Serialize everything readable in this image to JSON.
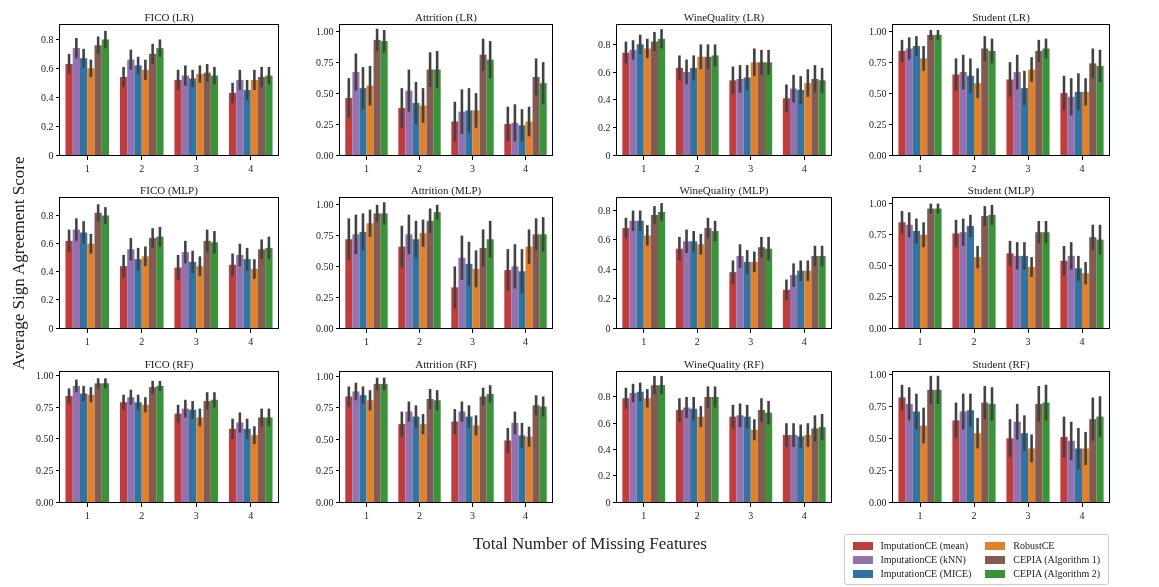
{
  "chart_data": [
    {
      "type": "bar",
      "title": "FICO (LR)",
      "categories": [
        "1",
        "2",
        "3",
        "4"
      ],
      "ylim": [
        0,
        0.9
      ],
      "yticks": [
        0,
        0.2,
        0.4,
        0.6,
        0.8
      ],
      "grid": false,
      "series": [
        {
          "color": "#c03d3e",
          "values": [
            0.63,
            0.54,
            0.52,
            0.43
          ],
          "errors": [
            0.07,
            0.07,
            0.07,
            0.07
          ]
        },
        {
          "color": "#9372b2",
          "values": [
            0.74,
            0.66,
            0.55,
            0.52
          ],
          "errors": [
            0.07,
            0.07,
            0.07,
            0.07
          ]
        },
        {
          "color": "#3274a1",
          "values": [
            0.67,
            0.62,
            0.53,
            0.45
          ],
          "errors": [
            0.065,
            0.06,
            0.06,
            0.07
          ]
        },
        {
          "color": "#e1812c",
          "values": [
            0.6,
            0.59,
            0.56,
            0.52
          ],
          "errors": [
            0.06,
            0.07,
            0.06,
            0.07
          ]
        },
        {
          "color": "#845b53",
          "values": [
            0.76,
            0.7,
            0.57,
            0.54
          ],
          "errors": [
            0.06,
            0.07,
            0.06,
            0.07
          ]
        },
        {
          "color": "#3a923a",
          "values": [
            0.8,
            0.74,
            0.55,
            0.55
          ],
          "errors": [
            0.06,
            0.06,
            0.06,
            0.06
          ]
        }
      ]
    },
    {
      "type": "bar",
      "title": "Attrition (LR)",
      "categories": [
        "1",
        "2",
        "3",
        "4"
      ],
      "ylim": [
        0,
        1.05
      ],
      "yticks": [
        {
          "value": 0,
          "label": "0.00"
        },
        0.25,
        {
          "value": 0.5,
          "label": "0.50"
        },
        0.75,
        {
          "value": 1,
          "label": "1.00"
        }
      ],
      "grid": false,
      "series": [
        {
          "color": "#c03d3e",
          "values": [
            0.46,
            0.38,
            0.27,
            0.25
          ],
          "errors": [
            0.16,
            0.16,
            0.16,
            0.14
          ]
        },
        {
          "color": "#9372b2",
          "values": [
            0.67,
            0.52,
            0.35,
            0.26
          ],
          "errors": [
            0.15,
            0.17,
            0.18,
            0.15
          ]
        },
        {
          "color": "#3274a1",
          "values": [
            0.54,
            0.42,
            0.36,
            0.24
          ],
          "errors": [
            0.17,
            0.17,
            0.18,
            0.13
          ]
        },
        {
          "color": "#e1812c",
          "values": [
            0.56,
            0.4,
            0.36,
            0.27
          ],
          "errors": [
            0.16,
            0.14,
            0.14,
            0.12
          ]
        },
        {
          "color": "#845b53",
          "values": [
            0.93,
            0.69,
            0.81,
            0.63
          ],
          "errors": [
            0.09,
            0.14,
            0.13,
            0.15
          ]
        },
        {
          "color": "#3a923a",
          "values": [
            0.92,
            0.69,
            0.77,
            0.58
          ],
          "errors": [
            0.09,
            0.15,
            0.15,
            0.17
          ]
        }
      ]
    },
    {
      "type": "bar",
      "title": "WineQuality (LR)",
      "categories": [
        "1",
        "2",
        "3",
        "4"
      ],
      "ylim": [
        0,
        0.94
      ],
      "yticks": [
        0,
        0.2,
        0.4,
        0.6,
        0.8
      ],
      "grid": false,
      "series": [
        {
          "color": "#c03d3e",
          "values": [
            0.74,
            0.63,
            0.54,
            0.41
          ],
          "errors": [
            0.08,
            0.09,
            0.1,
            0.1
          ]
        },
        {
          "color": "#9372b2",
          "values": [
            0.76,
            0.6,
            0.55,
            0.48
          ],
          "errors": [
            0.07,
            0.09,
            0.1,
            0.1
          ]
        },
        {
          "color": "#3274a1",
          "values": [
            0.8,
            0.63,
            0.56,
            0.47
          ],
          "errors": [
            0.07,
            0.09,
            0.09,
            0.1
          ]
        },
        {
          "color": "#e1812c",
          "values": [
            0.77,
            0.71,
            0.67,
            0.52
          ],
          "errors": [
            0.07,
            0.09,
            0.1,
            0.1
          ]
        },
        {
          "color": "#845b53",
          "values": [
            0.82,
            0.71,
            0.67,
            0.55
          ],
          "errors": [
            0.07,
            0.09,
            0.09,
            0.1
          ]
        },
        {
          "color": "#3a923a",
          "values": [
            0.84,
            0.72,
            0.67,
            0.54
          ],
          "errors": [
            0.07,
            0.08,
            0.09,
            0.09
          ]
        }
      ]
    },
    {
      "type": "bar",
      "title": "Student (LR)",
      "categories": [
        "1",
        "2",
        "3",
        "4"
      ],
      "ylim": [
        0,
        1.05
      ],
      "yticks": [
        {
          "value": 0,
          "label": "0.00"
        },
        0.25,
        {
          "value": 0.5,
          "label": "0.50"
        },
        0.75,
        {
          "value": 1,
          "label": "1.00"
        }
      ],
      "grid": false,
      "series": [
        {
          "color": "#c03d3e",
          "values": [
            0.84,
            0.65,
            0.61,
            0.5
          ],
          "errors": [
            0.09,
            0.13,
            0.14,
            0.14
          ]
        },
        {
          "color": "#9372b2",
          "values": [
            0.86,
            0.67,
            0.67,
            0.47
          ],
          "errors": [
            0.09,
            0.14,
            0.14,
            0.15
          ]
        },
        {
          "color": "#3274a1",
          "values": [
            0.88,
            0.64,
            0.54,
            0.51
          ],
          "errors": [
            0.08,
            0.14,
            0.14,
            0.15
          ]
        },
        {
          "color": "#e1812c",
          "values": [
            0.78,
            0.58,
            0.69,
            0.51
          ],
          "errors": [
            0.1,
            0.12,
            0.1,
            0.11
          ]
        },
        {
          "color": "#845b53",
          "values": [
            0.97,
            0.86,
            0.84,
            0.74
          ],
          "errors": [
            0.04,
            0.1,
            0.09,
            0.12
          ]
        },
        {
          "color": "#3a923a",
          "values": [
            0.97,
            0.84,
            0.86,
            0.72
          ],
          "errors": [
            0.04,
            0.1,
            0.08,
            0.13
          ]
        }
      ]
    },
    {
      "type": "bar",
      "title": "FICO (MLP)",
      "ylabel": "Average Sign Agreement Score",
      "categories": [
        "1",
        "2",
        "3",
        "4"
      ],
      "ylim": [
        0,
        0.925
      ],
      "yticks": [
        0,
        0.2,
        0.4,
        0.6,
        0.8
      ],
      "grid": false,
      "series": [
        {
          "color": "#c03d3e",
          "values": [
            0.62,
            0.44,
            0.43,
            0.45
          ],
          "errors": [
            0.08,
            0.08,
            0.09,
            0.08
          ]
        },
        {
          "color": "#9372b2",
          "values": [
            0.7,
            0.56,
            0.54,
            0.52
          ],
          "errors": [
            0.08,
            0.08,
            0.08,
            0.08
          ]
        },
        {
          "color": "#3274a1",
          "values": [
            0.68,
            0.49,
            0.47,
            0.49
          ],
          "errors": [
            0.08,
            0.08,
            0.08,
            0.08
          ]
        },
        {
          "color": "#e1812c",
          "values": [
            0.6,
            0.51,
            0.44,
            0.42
          ],
          "errors": [
            0.07,
            0.07,
            0.07,
            0.07
          ]
        },
        {
          "color": "#845b53",
          "values": [
            0.82,
            0.64,
            0.62,
            0.56
          ],
          "errors": [
            0.06,
            0.07,
            0.08,
            0.07
          ]
        },
        {
          "color": "#3a923a",
          "values": [
            0.8,
            0.65,
            0.61,
            0.57
          ],
          "errors": [
            0.06,
            0.07,
            0.08,
            0.08
          ]
        }
      ]
    },
    {
      "type": "bar",
      "title": "Attrition (MLP)",
      "categories": [
        "1",
        "2",
        "3",
        "4"
      ],
      "ylim": [
        0,
        1.055
      ],
      "yticks": [
        {
          "value": 0,
          "label": "0.00"
        },
        0.25,
        {
          "value": 0.5,
          "label": "0.50"
        },
        0.75,
        {
          "value": 1,
          "label": "1.00"
        }
      ],
      "grid": false,
      "series": [
        {
          "color": "#c03d3e",
          "values": [
            0.72,
            0.66,
            0.33,
            0.47
          ],
          "errors": [
            0.17,
            0.17,
            0.17,
            0.17
          ]
        },
        {
          "color": "#9372b2",
          "values": [
            0.76,
            0.76,
            0.57,
            0.5
          ],
          "errors": [
            0.16,
            0.16,
            0.18,
            0.18
          ]
        },
        {
          "color": "#3274a1",
          "values": [
            0.78,
            0.72,
            0.52,
            0.46
          ],
          "errors": [
            0.15,
            0.15,
            0.18,
            0.18
          ]
        },
        {
          "color": "#e1812c",
          "values": [
            0.85,
            0.77,
            0.48,
            0.66
          ],
          "errors": [
            0.11,
            0.11,
            0.15,
            0.14
          ]
        },
        {
          "color": "#845b53",
          "values": [
            0.93,
            0.87,
            0.65,
            0.76
          ],
          "errors": [
            0.07,
            0.1,
            0.15,
            0.13
          ]
        },
        {
          "color": "#3a923a",
          "values": [
            0.93,
            0.94,
            0.72,
            0.76
          ],
          "errors": [
            0.09,
            0.06,
            0.15,
            0.14
          ]
        }
      ]
    },
    {
      "type": "bar",
      "title": "WineQuality (MLP)",
      "categories": [
        "1",
        "2",
        "3",
        "4"
      ],
      "ylim": [
        0,
        0.885
      ],
      "yticks": [
        0,
        0.2,
        0.4,
        0.6,
        0.8
      ],
      "grid": false,
      "series": [
        {
          "color": "#c03d3e",
          "values": [
            0.68,
            0.54,
            0.38,
            0.26
          ],
          "errors": [
            0.07,
            0.08,
            0.08,
            0.07
          ]
        },
        {
          "color": "#9372b2",
          "values": [
            0.73,
            0.59,
            0.49,
            0.36
          ],
          "errors": [
            0.07,
            0.08,
            0.08,
            0.08
          ]
        },
        {
          "color": "#3274a1",
          "values": [
            0.73,
            0.59,
            0.45,
            0.39
          ],
          "errors": [
            0.07,
            0.07,
            0.08,
            0.07
          ]
        },
        {
          "color": "#e1812c",
          "values": [
            0.63,
            0.57,
            0.45,
            0.39
          ],
          "errors": [
            0.07,
            0.07,
            0.07,
            0.07
          ]
        },
        {
          "color": "#845b53",
          "values": [
            0.77,
            0.68,
            0.55,
            0.49
          ],
          "errors": [
            0.06,
            0.07,
            0.07,
            0.07
          ]
        },
        {
          "color": "#3a923a",
          "values": [
            0.79,
            0.66,
            0.54,
            0.49
          ],
          "errors": [
            0.06,
            0.07,
            0.08,
            0.07
          ]
        }
      ]
    },
    {
      "type": "bar",
      "title": "Student (MLP)",
      "categories": [
        "1",
        "2",
        "3",
        "4"
      ],
      "ylim": [
        0,
        1.045
      ],
      "yticks": [
        {
          "value": 0,
          "label": "0.00"
        },
        0.25,
        {
          "value": 0.5,
          "label": "0.50"
        },
        0.75,
        {
          "value": 1,
          "label": "1.00"
        }
      ],
      "grid": false,
      "series": [
        {
          "color": "#c03d3e",
          "values": [
            0.85,
            0.76,
            0.6,
            0.54
          ],
          "errors": [
            0.09,
            0.11,
            0.1,
            0.12
          ]
        },
        {
          "color": "#9372b2",
          "values": [
            0.83,
            0.77,
            0.58,
            0.58
          ],
          "errors": [
            0.1,
            0.11,
            0.11,
            0.11
          ]
        },
        {
          "color": "#3274a1",
          "values": [
            0.78,
            0.82,
            0.58,
            0.48
          ],
          "errors": [
            0.1,
            0.09,
            0.11,
            0.1
          ]
        },
        {
          "color": "#e1812c",
          "values": [
            0.75,
            0.57,
            0.49,
            0.44
          ],
          "errors": [
            0.1,
            0.09,
            0.08,
            0.09
          ]
        },
        {
          "color": "#845b53",
          "values": [
            0.96,
            0.9,
            0.77,
            0.73
          ],
          "errors": [
            0.04,
            0.08,
            0.09,
            0.1
          ]
        },
        {
          "color": "#3a923a",
          "values": [
            0.96,
            0.91,
            0.77,
            0.71
          ],
          "errors": [
            0.04,
            0.08,
            0.09,
            0.12
          ]
        }
      ]
    },
    {
      "type": "bar",
      "title": "FICO (RF)",
      "categories": [
        "1",
        "2",
        "3",
        "4"
      ],
      "ylim": [
        0,
        1.03
      ],
      "yticks": [
        {
          "value": 0,
          "label": "0.00"
        },
        0.25,
        {
          "value": 0.5,
          "label": "0.50"
        },
        0.75,
        {
          "value": 1,
          "label": "1.00"
        }
      ],
      "grid": false,
      "series": [
        {
          "color": "#c03d3e",
          "values": [
            0.84,
            0.79,
            0.7,
            0.58
          ],
          "errors": [
            0.06,
            0.06,
            0.07,
            0.08
          ]
        },
        {
          "color": "#9372b2",
          "values": [
            0.92,
            0.83,
            0.74,
            0.63
          ],
          "errors": [
            0.05,
            0.06,
            0.07,
            0.08
          ]
        },
        {
          "color": "#3274a1",
          "values": [
            0.86,
            0.79,
            0.73,
            0.58
          ],
          "errors": [
            0.06,
            0.06,
            0.07,
            0.08
          ]
        },
        {
          "color": "#e1812c",
          "values": [
            0.85,
            0.77,
            0.67,
            0.53
          ],
          "errors": [
            0.06,
            0.06,
            0.07,
            0.07
          ]
        },
        {
          "color": "#845b53",
          "values": [
            0.94,
            0.91,
            0.8,
            0.67
          ],
          "errors": [
            0.04,
            0.05,
            0.07,
            0.07
          ]
        },
        {
          "color": "#3a923a",
          "values": [
            0.94,
            0.92,
            0.81,
            0.67
          ],
          "errors": [
            0.04,
            0.04,
            0.06,
            0.07
          ]
        }
      ]
    },
    {
      "type": "bar",
      "title": "Attrition (RF)",
      "xlabel": "Total Number of Missing Features",
      "categories": [
        "1",
        "2",
        "3",
        "4"
      ],
      "ylim": [
        0,
        1.035
      ],
      "yticks": [
        {
          "value": 0,
          "label": "0.00"
        },
        0.25,
        {
          "value": 0.5,
          "label": "0.50"
        },
        0.75,
        {
          "value": 1,
          "label": "1.00"
        }
      ],
      "grid": false,
      "series": [
        {
          "color": "#c03d3e",
          "values": [
            0.84,
            0.62,
            0.64,
            0.49
          ],
          "errors": [
            0.08,
            0.1,
            0.1,
            0.1
          ]
        },
        {
          "color": "#9372b2",
          "values": [
            0.88,
            0.72,
            0.72,
            0.63
          ],
          "errors": [
            0.07,
            0.08,
            0.08,
            0.09
          ]
        },
        {
          "color": "#3274a1",
          "values": [
            0.85,
            0.68,
            0.68,
            0.53
          ],
          "errors": [
            0.07,
            0.09,
            0.09,
            0.1
          ]
        },
        {
          "color": "#e1812c",
          "values": [
            0.81,
            0.62,
            0.61,
            0.52
          ],
          "errors": [
            0.08,
            0.08,
            0.08,
            0.08
          ]
        },
        {
          "color": "#845b53",
          "values": [
            0.94,
            0.82,
            0.84,
            0.77
          ],
          "errors": [
            0.05,
            0.08,
            0.07,
            0.08
          ]
        },
        {
          "color": "#3a923a",
          "values": [
            0.94,
            0.81,
            0.86,
            0.76
          ],
          "errors": [
            0.05,
            0.08,
            0.07,
            0.08
          ]
        }
      ]
    },
    {
      "type": "bar",
      "title": "WineQuality (RF)",
      "categories": [
        "1",
        "2",
        "3",
        "4"
      ],
      "ylim": [
        0,
        0.99
      ],
      "yticks": [
        0,
        0.2,
        0.4,
        0.6,
        0.8
      ],
      "grid": false,
      "series": [
        {
          "color": "#c03d3e",
          "values": [
            0.79,
            0.7,
            0.65,
            0.51
          ],
          "errors": [
            0.08,
            0.09,
            0.09,
            0.09
          ]
        },
        {
          "color": "#9372b2",
          "values": [
            0.83,
            0.72,
            0.66,
            0.51
          ],
          "errors": [
            0.07,
            0.08,
            0.09,
            0.09
          ]
        },
        {
          "color": "#3274a1",
          "values": [
            0.84,
            0.71,
            0.65,
            0.5
          ],
          "errors": [
            0.07,
            0.09,
            0.09,
            0.09
          ]
        },
        {
          "color": "#e1812c",
          "values": [
            0.79,
            0.65,
            0.55,
            0.51
          ],
          "errors": [
            0.07,
            0.08,
            0.08,
            0.09
          ]
        },
        {
          "color": "#845b53",
          "values": [
            0.89,
            0.8,
            0.7,
            0.56
          ],
          "errors": [
            0.07,
            0.08,
            0.09,
            0.1
          ]
        },
        {
          "color": "#3a923a",
          "values": [
            0.89,
            0.8,
            0.68,
            0.57
          ],
          "errors": [
            0.07,
            0.08,
            0.09,
            0.1
          ]
        }
      ]
    },
    {
      "type": "bar",
      "title": "Student (RF)",
      "categories": [
        "1",
        "2",
        "3",
        "4"
      ],
      "ylim": [
        0,
        1.02
      ],
      "yticks": [
        {
          "value": 0,
          "label": "0.00"
        },
        0.25,
        {
          "value": 0.5,
          "label": "0.50"
        },
        0.75,
        {
          "value": 1,
          "label": "1.00"
        }
      ],
      "grid": false,
      "legend": "bottom",
      "series": [
        {
          "name": "ImputationCE (mean)",
          "color": "#c03d3e",
          "values": [
            0.82,
            0.64,
            0.5,
            0.51
          ],
          "errors": [
            0.1,
            0.14,
            0.15,
            0.16
          ]
        },
        {
          "name": "ImputationCE (kNN)",
          "color": "#9372b2",
          "values": [
            0.77,
            0.71,
            0.63,
            0.48
          ],
          "errors": [
            0.13,
            0.14,
            0.14,
            0.15
          ]
        },
        {
          "name": "ImputationCE (MICE)",
          "color": "#3274a1",
          "values": [
            0.71,
            0.72,
            0.54,
            0.42
          ],
          "errors": [
            0.14,
            0.13,
            0.14,
            0.16
          ]
        },
        {
          "name": "RobustCE",
          "color": "#e1812c",
          "values": [
            0.6,
            0.54,
            0.42,
            0.42
          ],
          "errors": [
            0.14,
            0.12,
            0.11,
            0.13
          ]
        },
        {
          "name": "CEPIA (Algorithm 1)",
          "color": "#845b53",
          "values": [
            0.88,
            0.78,
            0.77,
            0.65
          ],
          "errors": [
            0.11,
            0.13,
            0.14,
            0.17
          ]
        },
        {
          "name": "CEPIA (Algorithm 2)",
          "color": "#3a923a",
          "values": [
            0.88,
            0.77,
            0.78,
            0.67
          ],
          "errors": [
            0.11,
            0.13,
            0.14,
            0.16
          ]
        }
      ]
    }
  ]
}
